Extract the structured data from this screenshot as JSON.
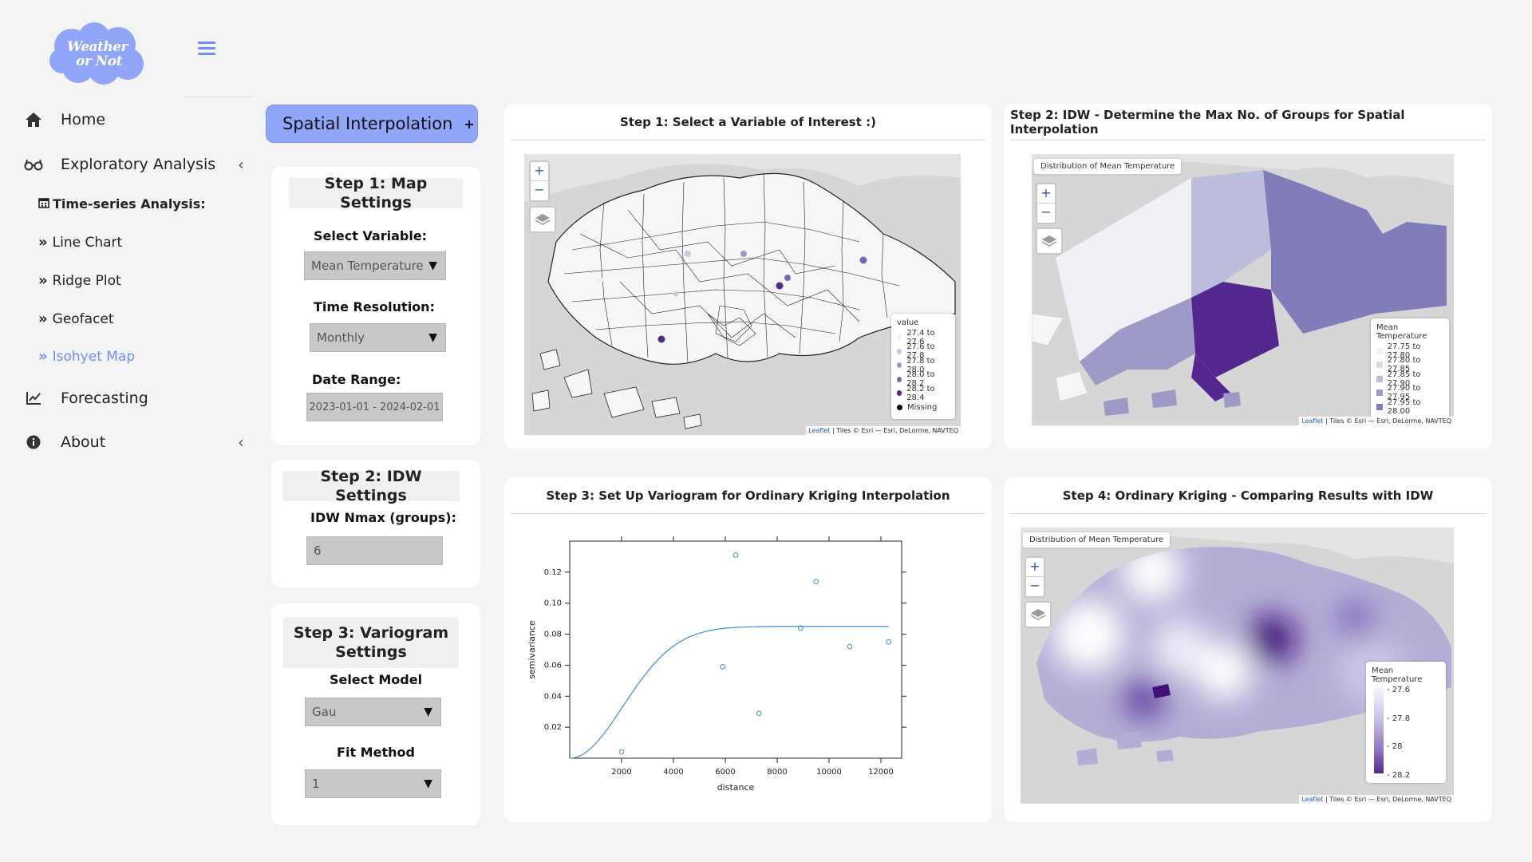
{
  "app": {
    "logo_text_line1": "Weather",
    "logo_text_line2": "or Not"
  },
  "sidebar": {
    "nav": [
      {
        "label": "Home",
        "icon": "home-icon"
      },
      {
        "label": "Exploratory Analysis",
        "icon": "glasses-icon"
      },
      {
        "label": "Forecasting",
        "icon": "line-chart-icon"
      },
      {
        "label": "About",
        "icon": "info-icon"
      }
    ],
    "sub_heading": "Time-series Analysis:",
    "sub_items": [
      "Line Chart",
      "Ridge Plot",
      "Geofacet",
      "Isohyet Map"
    ],
    "active_item": "Isohyet Map",
    "accent_color": "#6f8ff7"
  },
  "settings": {
    "tab_button": "Spatial Interpolation",
    "step1": {
      "title": "Step 1: Map Settings",
      "variable_label": "Select Variable:",
      "variable_value": "Mean Temperature",
      "resolution_label": "Time Resolution:",
      "resolution_value": "Monthly",
      "date_label": "Date Range:",
      "date_value": "2023-01-01 - 2024-02-01"
    },
    "step2": {
      "title": "Step 2: IDW Settings",
      "nmax_label": "IDW Nmax (groups):",
      "nmax_value": "6"
    },
    "step3": {
      "title_line1": "Step 3: Variogram",
      "title_line2": "Settings",
      "model_label": "Select Model",
      "model_value": "Gau",
      "fit_label": "Fit Method",
      "fit_value": "1"
    }
  },
  "panels": {
    "p1": {
      "title": "Step 1: Select a Variable of Interest  :)",
      "legend_title": "value",
      "legend": [
        "27.4 to 27.6",
        "27.6 to 27.8",
        "27.8 to 28.0",
        "28.0 to 28.2",
        "28.2 to 28.4",
        "Missing"
      ],
      "legend_colors": [
        "#efedf5",
        "#cbc9e2",
        "#9e9ac8",
        "#756bb1",
        "#54278f",
        "#000000"
      ]
    },
    "p2": {
      "title": "Step 2: IDW - Determine the Max No. of Groups for Spatial Interpolation",
      "map_label": "Distribution of Mean Temperature",
      "legend_title": "Mean Temperature",
      "legend": [
        "27.75 to 27.80",
        "27.80 to 27.85",
        "27.85 to 27.90",
        "27.90 to 27.95",
        "27.95 to 28.00"
      ],
      "legend_colors": [
        "#f2f0f7",
        "#dadaeb",
        "#bcbddc",
        "#9e9ac8",
        "#807dba"
      ]
    },
    "p3": {
      "title": "Step 3: Set Up Variogram for Ordinary Kriging Interpolation"
    },
    "p4": {
      "title": "Step 4: Ordinary Kriging - Comparing Results with IDW",
      "map_label": "Distribution of Mean Temperature",
      "legend_title": "Mean Temperature",
      "legend_ticks": [
        "27.6",
        "27.8",
        "28",
        "28.2"
      ]
    },
    "attribution_link": "Leaflet",
    "attribution_text": "| Tiles © Esri — Esri, DeLorme, NAVTEQ"
  },
  "chart_data": {
    "type": "scatter",
    "xlabel": "distance",
    "ylabel": "semivariance",
    "xlim": [
      0,
      12800
    ],
    "ylim": [
      0,
      0.14
    ],
    "x_ticks": [
      2000,
      4000,
      6000,
      8000,
      10000,
      12000
    ],
    "y_ticks": [
      0.02,
      0.04,
      0.06,
      0.08,
      0.1,
      0.12
    ],
    "y_tick_labels": [
      "0.02",
      "0.04",
      "0.06",
      "0.08",
      "0.10",
      "0.12"
    ],
    "points": [
      {
        "x": 2000,
        "y": 0.004
      },
      {
        "x": 5900,
        "y": 0.059
      },
      {
        "x": 6400,
        "y": 0.131
      },
      {
        "x": 7300,
        "y": 0.029
      },
      {
        "x": 8900,
        "y": 0.084
      },
      {
        "x": 9500,
        "y": 0.114
      },
      {
        "x": 10800,
        "y": 0.072
      },
      {
        "x": 12300,
        "y": 0.075
      }
    ],
    "model": {
      "type": "Gaussian",
      "sill": 0.085,
      "range": 2900
    }
  }
}
